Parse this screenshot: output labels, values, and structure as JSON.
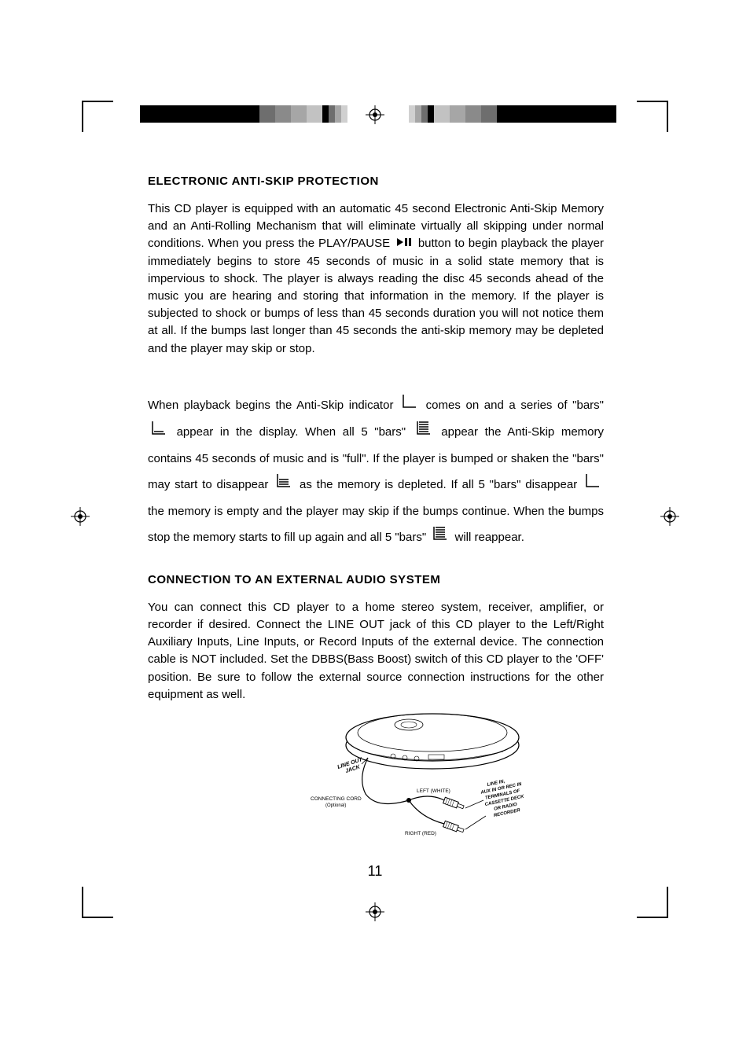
{
  "headings": {
    "h1": "ELECTRONIC ANTI-SKIP PROTECTION",
    "h2": "CONNECTION TO AN EXTERNAL AUDIO SYSTEM"
  },
  "paragraphs": {
    "p1a": "This CD player is equipped with an automatic 45 second Electronic Anti-Skip Memory and an Anti-Rolling Mechanism that will eliminate virtually all skipping under normal conditions. When you press the PLAY/PAUSE ",
    "p1b": " button to begin playback the player immediately begins to store 45 seconds of music in a solid state memory that is impervious to shock. The player is always reading the disc 45 seconds ahead of the music you are hearing and storing that information in the memory. If the player is subjected to shock or bumps of less than 45 seconds duration you will not notice them at all. If the bumps last longer than 45 seconds the anti-skip memory may be depleted and the player may skip or stop.",
    "p2a": "When playback begins the Anti-Skip indicator ",
    "p2b": " comes on and a series of \"bars\" ",
    "p2c": " appear in the display. When all 5 \"bars\" ",
    "p2d": " appear the Anti-Skip memory contains 45 seconds of music and is \"full\". If the player is bumped or shaken the \"bars\" may start to disappear ",
    "p2e": " as the memory is depleted. If all 5 \"bars\" disappear ",
    "p2f": " the memory is empty and the player may skip if the bumps continue. When the bumps stop the memory starts to fill up again and all 5 \"bars\" ",
    "p2g": " will reappear.",
    "p3": "You can connect this CD player to a home stereo system, receiver, amplifier, or recorder if desired. Connect the LINE OUT jack of this CD player to the Left/Right Auxiliary Inputs, Line Inputs, or Record Inputs of the external device. The connection cable is NOT included. Set the DBBS(Bass Boost) switch of this CD player to the 'OFF' position. Be sure to follow the external source connection instructions for the other equipment as well."
  },
  "page_number": "11",
  "illustration_labels": {
    "line_out": "LINE OUT JACK",
    "cord": "CONNECTING CORD",
    "cord_sub": "(Optional)",
    "left": "LEFT (WHITE)",
    "right": "RIGHT (RED)",
    "stack1": "LINE IN,",
    "stack2": "AUX IN OR REC IN",
    "stack3": "TERMINALS OF",
    "stack4": "CASSETTE DECK",
    "stack5": "OR RADIO",
    "stack6": "RECORDER"
  },
  "colorbar_widths": [
    38,
    38,
    38,
    38,
    20,
    20,
    20,
    20,
    8,
    8,
    8,
    8
  ],
  "colorbar_shades": [
    "#000000",
    "#000000",
    "#000000",
    "#000000",
    "#6e6e6e",
    "#8a8a8a",
    "#a6a6a6",
    "#c2c2c2",
    "#000000",
    "#6e6e6e",
    "#a6a6a6",
    "#d0d0d0"
  ]
}
